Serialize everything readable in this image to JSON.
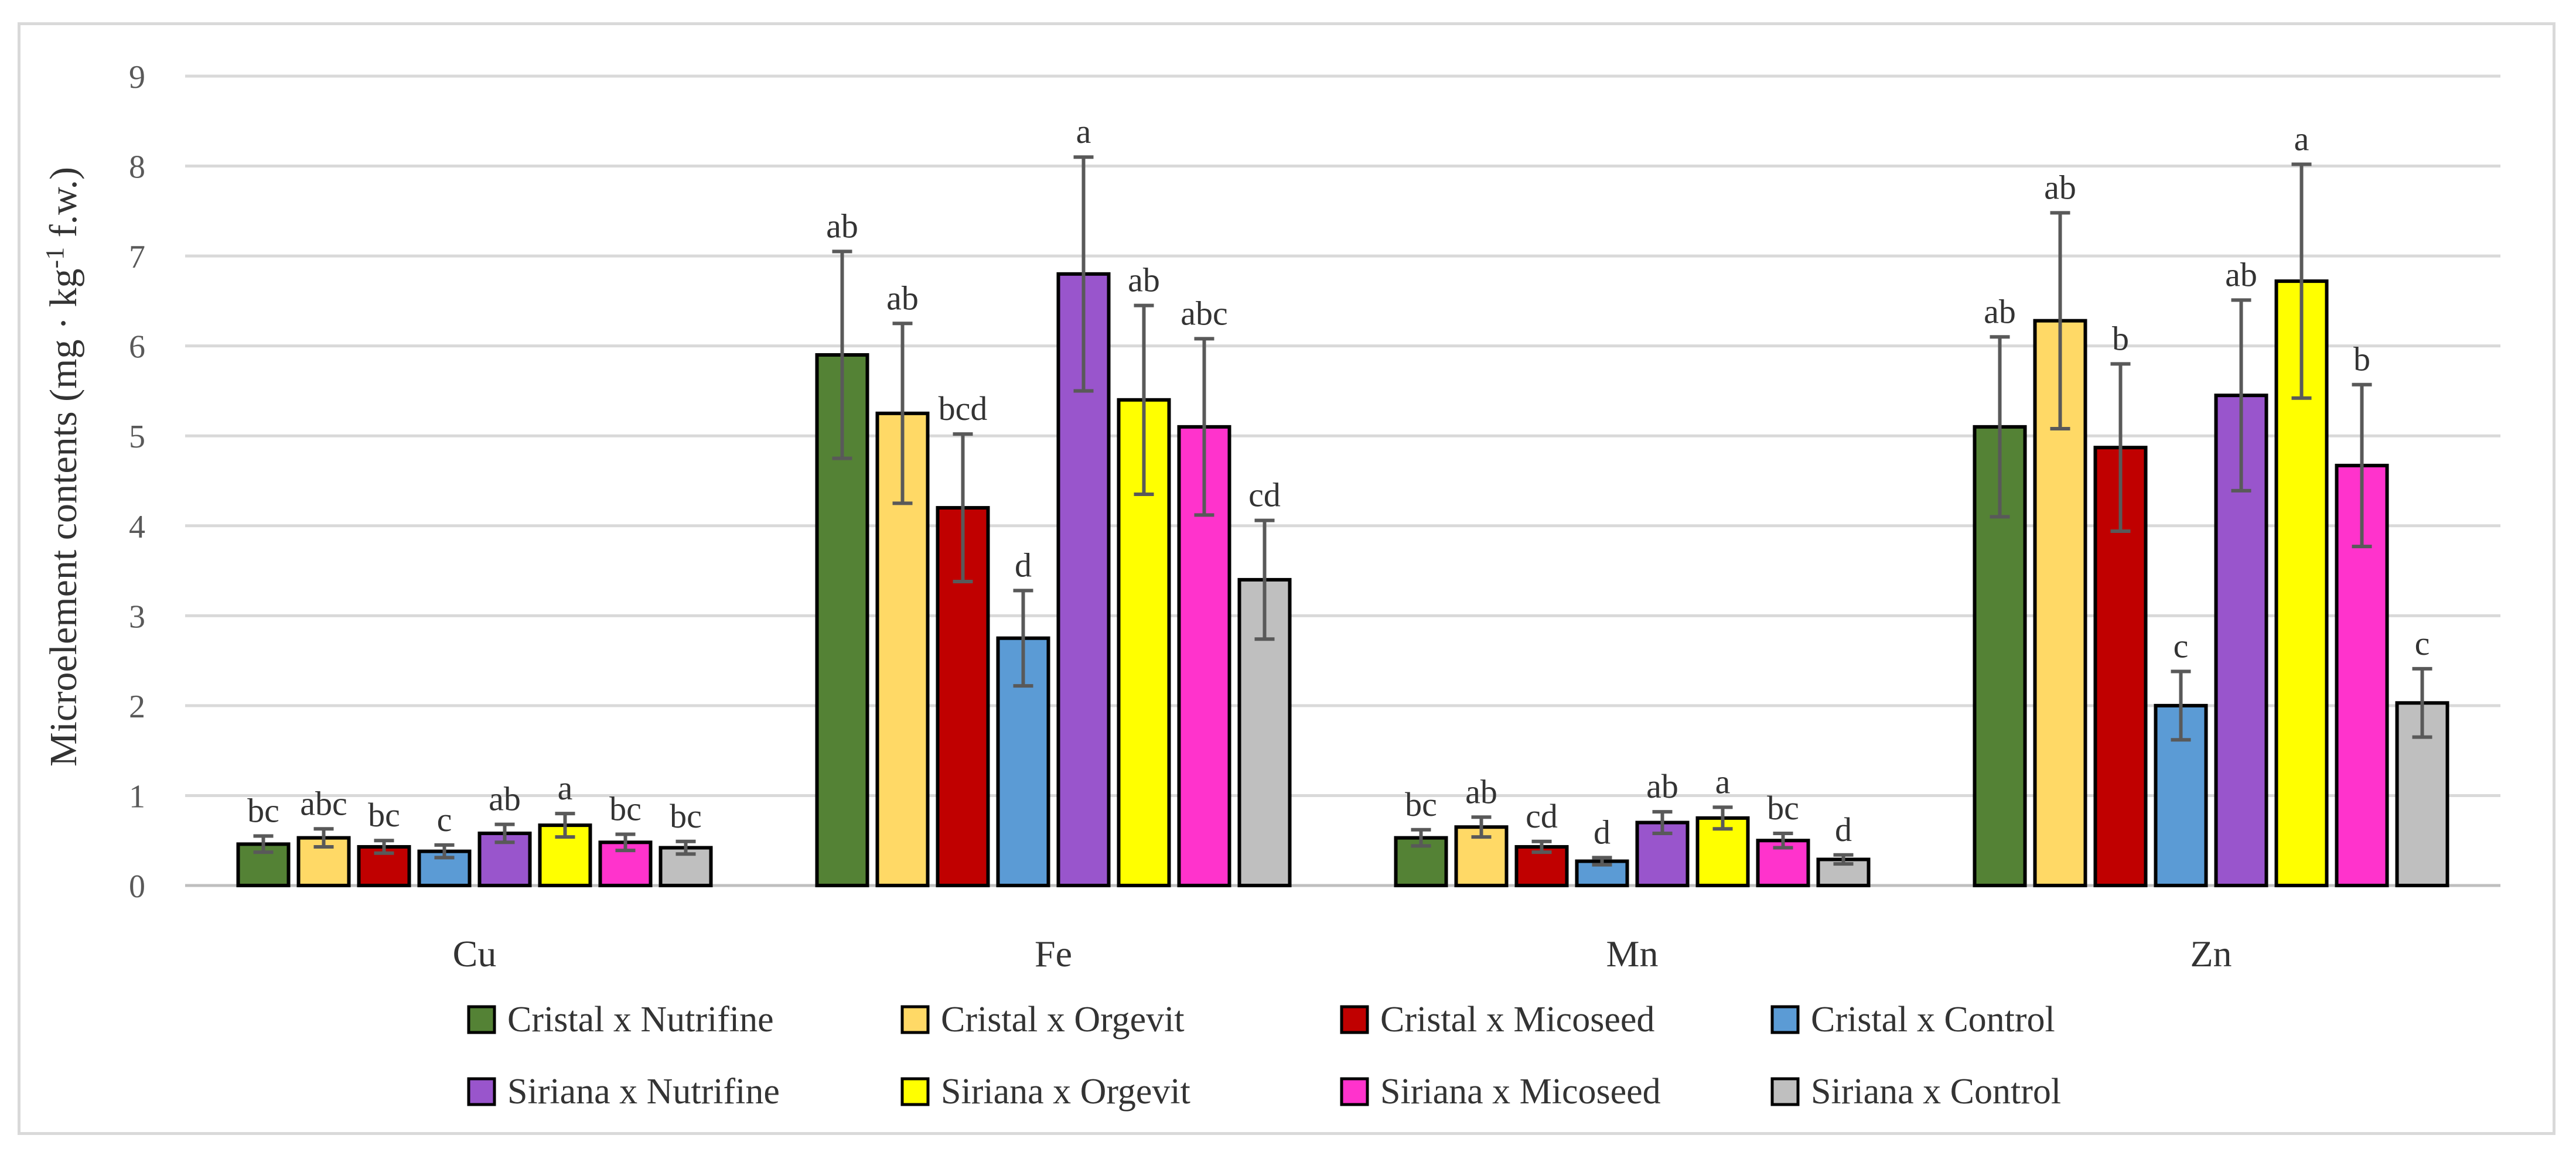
{
  "chart_data": {
    "type": "bar",
    "title": "",
    "xlabel": "",
    "ylabel": "Microelement contents (mg · kg",
    "ylabel_sup": "-1",
    "ylabel_suffix": " f.w.)",
    "ylim": [
      0,
      9
    ],
    "yticks": [
      0,
      1,
      2,
      3,
      4,
      5,
      6,
      7,
      8,
      9
    ],
    "grid": true,
    "legend_position": "bottom",
    "categories": [
      "Cu",
      "Fe",
      "Mn",
      "Zn"
    ],
    "series": [
      {
        "name": "Cristal x Nutrifine",
        "color": "#548235",
        "values": [
          0.46,
          5.9,
          0.53,
          5.1
        ],
        "errors": [
          0.09,
          1.15,
          0.09,
          1.0
        ],
        "letters": [
          "bc",
          "ab",
          "bc",
          "ab"
        ]
      },
      {
        "name": "Cristal x Orgevit",
        "color": "#ffd966",
        "values": [
          0.53,
          5.25,
          0.65,
          6.28
        ],
        "errors": [
          0.1,
          1.0,
          0.11,
          1.2
        ],
        "letters": [
          "abc",
          "ab",
          "ab",
          "ab"
        ]
      },
      {
        "name": "Cristal x Micoseed",
        "color": "#c00000",
        "values": [
          0.43,
          4.2,
          0.43,
          4.87
        ],
        "errors": [
          0.07,
          0.82,
          0.06,
          0.93
        ],
        "letters": [
          "bc",
          "bcd",
          "cd",
          "b"
        ]
      },
      {
        "name": "Cristal x Control",
        "color": "#5b9bd5",
        "values": [
          0.38,
          2.75,
          0.27,
          2.0
        ],
        "errors": [
          0.07,
          0.53,
          0.04,
          0.38
        ],
        "letters": [
          "c",
          "d",
          "d",
          "c"
        ]
      },
      {
        "name": "Siriana x Nutrifine",
        "color": "#9955cc",
        "values": [
          0.58,
          6.8,
          0.7,
          5.45
        ],
        "errors": [
          0.1,
          1.3,
          0.12,
          1.06
        ],
        "letters": [
          "ab",
          "a",
          "ab",
          "ab"
        ]
      },
      {
        "name": "Siriana x Orgevit",
        "color": "#ffff00",
        "values": [
          0.67,
          5.4,
          0.75,
          6.72
        ],
        "errors": [
          0.13,
          1.05,
          0.12,
          1.3
        ],
        "letters": [
          "a",
          "ab",
          "a",
          "a"
        ]
      },
      {
        "name": "Siriana x Micoseed",
        "color": "#ff33cc",
        "values": [
          0.48,
          5.1,
          0.5,
          4.67
        ],
        "errors": [
          0.09,
          0.98,
          0.08,
          0.9
        ],
        "letters": [
          "bc",
          "abc",
          "bc",
          "b"
        ]
      },
      {
        "name": "Siriana x Control",
        "color": "#bfbfbf",
        "values": [
          0.42,
          3.4,
          0.29,
          2.03
        ],
        "errors": [
          0.07,
          0.66,
          0.05,
          0.38
        ],
        "letters": [
          "bc",
          "cd",
          "d",
          "c"
        ]
      }
    ]
  },
  "colors": {
    "gridline": "#d9d9d9",
    "axis": "#bfbfbf",
    "bar_outline": "#000000",
    "error_bar": "#595959"
  }
}
